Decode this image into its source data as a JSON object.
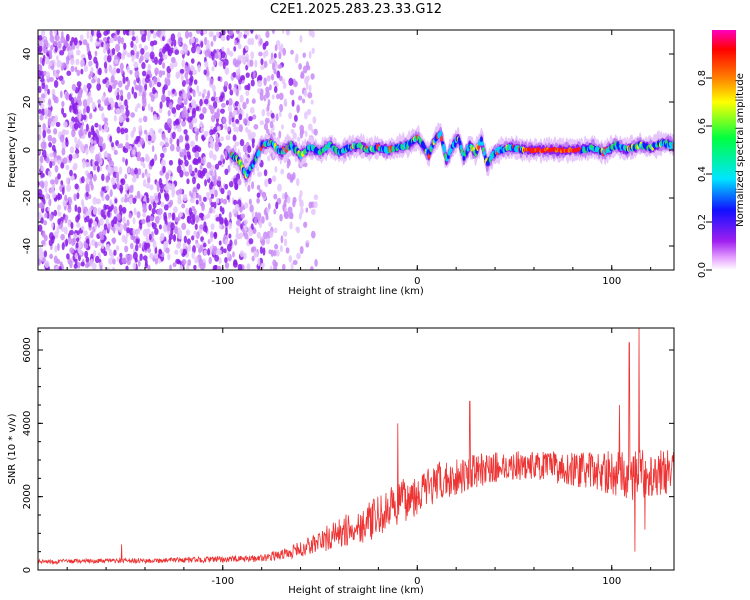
{
  "title": "C2E1.2025.283.23.33.G12",
  "chart_data": [
    {
      "type": "heatmap",
      "name": "spectrogram",
      "title": "C2E1.2025.283.23.33.G12",
      "xlabel": "Height of straight line (km)",
      "ylabel": "Frequency (Hz)",
      "xlim": [
        -195,
        132
      ],
      "ylim": [
        -50,
        50
      ],
      "xticks": [
        -100,
        0,
        100
      ],
      "xtick_labels": [
        "-100",
        "0",
        "100"
      ],
      "yticks": [
        -40,
        -20,
        0,
        20,
        40
      ],
      "ytick_labels": [
        "-40",
        "-20",
        "0",
        "20",
        "40"
      ],
      "colorbar": {
        "label": "Normalized spectral amplitude",
        "range": [
          0,
          1
        ],
        "ticks": [
          0.0,
          0.2,
          0.4,
          0.6,
          0.8
        ],
        "tick_labels": [
          "0.0",
          "0.2",
          "0.4",
          "0.6",
          "0.8"
        ],
        "colors": [
          "#ffffff",
          "#e6a3ff",
          "#a020f0",
          "#1010ff",
          "#00e5ff",
          "#00ff40",
          "#ffff00",
          "#ff8000",
          "#ff0000",
          "#ff00c0"
        ]
      },
      "noise_region_km": [
        -195,
        -60
      ],
      "signal_track": [
        {
          "x": -96,
          "y": -2
        },
        {
          "x": -92,
          "y": -4
        },
        {
          "x": -88,
          "y": -11
        },
        {
          "x": -84,
          "y": -5
        },
        {
          "x": -80,
          "y": 2
        },
        {
          "x": -75,
          "y": 3
        },
        {
          "x": -70,
          "y": -1
        },
        {
          "x": -65,
          "y": 2
        },
        {
          "x": -60,
          "y": -2
        },
        {
          "x": -55,
          "y": 1
        },
        {
          "x": -50,
          "y": -1
        },
        {
          "x": -45,
          "y": 2
        },
        {
          "x": -40,
          "y": -1
        },
        {
          "x": -35,
          "y": 1
        },
        {
          "x": -30,
          "y": 2
        },
        {
          "x": -25,
          "y": 0
        },
        {
          "x": -20,
          "y": 1
        },
        {
          "x": -15,
          "y": 0
        },
        {
          "x": -10,
          "y": 1
        },
        {
          "x": -5,
          "y": 2
        },
        {
          "x": 0,
          "y": 5
        },
        {
          "x": 3,
          "y": 2
        },
        {
          "x": 6,
          "y": -2
        },
        {
          "x": 9,
          "y": 4
        },
        {
          "x": 12,
          "y": 7
        },
        {
          "x": 15,
          "y": -4
        },
        {
          "x": 18,
          "y": 1
        },
        {
          "x": 21,
          "y": 5
        },
        {
          "x": 24,
          "y": -3
        },
        {
          "x": 27,
          "y": 2
        },
        {
          "x": 30,
          "y": -1
        },
        {
          "x": 33,
          "y": 4
        },
        {
          "x": 36,
          "y": -6
        },
        {
          "x": 39,
          "y": -2
        },
        {
          "x": 42,
          "y": 0
        },
        {
          "x": 48,
          "y": 1
        },
        {
          "x": 55,
          "y": 0
        },
        {
          "x": 65,
          "y": 0
        },
        {
          "x": 75,
          "y": 0
        },
        {
          "x": 84,
          "y": 0
        },
        {
          "x": 90,
          "y": 1
        },
        {
          "x": 96,
          "y": -1
        },
        {
          "x": 102,
          "y": 2
        },
        {
          "x": 108,
          "y": 0
        },
        {
          "x": 114,
          "y": 2
        },
        {
          "x": 120,
          "y": 1
        },
        {
          "x": 126,
          "y": 3
        },
        {
          "x": 132,
          "y": 2
        }
      ],
      "peak_amplitude_segment_km": [
        55,
        84
      ]
    },
    {
      "type": "line",
      "name": "snr",
      "xlabel": "Height of straight line (km)",
      "ylabel": "SNR (10 * v/v)",
      "xlim": [
        -195,
        132
      ],
      "ylim": [
        0,
        6600
      ],
      "xticks": [
        -100,
        0,
        100
      ],
      "xtick_labels": [
        "-100",
        "0",
        "100"
      ],
      "yticks": [
        0,
        2000,
        4000,
        6000
      ],
      "ytick_labels": [
        "0",
        "2000",
        "4000",
        "6000"
      ],
      "color": "#ee3333",
      "envelope": {
        "x": [
          -195,
          -170,
          -150,
          -130,
          -110,
          -90,
          -80,
          -70,
          -60,
          -50,
          -40,
          -30,
          -20,
          -10,
          0,
          10,
          20,
          30,
          40,
          50,
          60,
          70,
          80,
          90,
          100,
          110,
          120,
          132
        ],
        "mean": [
          230,
          240,
          250,
          260,
          280,
          300,
          330,
          420,
          560,
          780,
          1000,
          1200,
          1450,
          1800,
          2100,
          2350,
          2550,
          2700,
          2800,
          2850,
          2850,
          2800,
          2750,
          2700,
          2650,
          2600,
          2650,
          2700
        ],
        "spread": [
          60,
          60,
          70,
          70,
          80,
          90,
          100,
          140,
          220,
          330,
          420,
          500,
          560,
          600,
          600,
          560,
          520,
          460,
          420,
          400,
          400,
          420,
          460,
          520,
          600,
          700,
          650,
          600
        ]
      },
      "spikes": [
        {
          "x": -152,
          "y": 700
        },
        {
          "x": -10,
          "y": 4000
        },
        {
          "x": 27,
          "y": 4600
        },
        {
          "x": 104,
          "y": 4500
        },
        {
          "x": 109,
          "y": 6200
        },
        {
          "x": 112,
          "y": 500
        },
        {
          "x": 114,
          "y": 6600
        },
        {
          "x": 117,
          "y": 1100
        }
      ]
    }
  ]
}
